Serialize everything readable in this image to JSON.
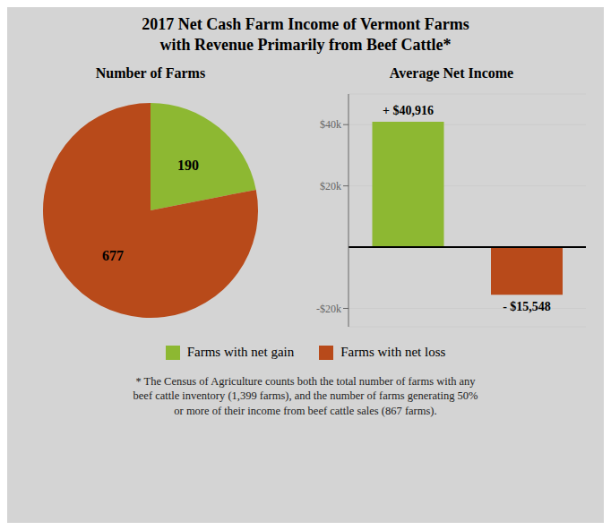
{
  "title": "2017 Net Cash Farm Income of Vermont Farms\nwith Revenue Primarily from Beef Cattle*",
  "annotations": [
    "* The Census of Agriculture counts both the total number of farms with any\nbeef cattle inventory (1,399 farms), and the number of farms generating 50%\nor more of their income from beef cattle sales (867 farms)."
  ],
  "chart_data": [
    {
      "type": "pie",
      "title": "Number of Farms",
      "categories": [
        "Farms with net gain",
        "Farms with net loss"
      ],
      "values": [
        190,
        677
      ],
      "colors": [
        "#8db832",
        "#b84a1a"
      ],
      "data_labels": true,
      "legend": "bottom"
    },
    {
      "type": "bar",
      "title": "Average Net Income",
      "categories": [
        "Farms with net gain",
        "Farms with net loss"
      ],
      "values": [
        40916,
        -15548
      ],
      "value_labels": [
        "+ $40,916",
        "- $15,548"
      ],
      "colors": [
        "#8db832",
        "#b84a1a"
      ],
      "data_labels": true,
      "ylim": [
        -26000,
        50000
      ],
      "yticks": [
        {
          "value": 40000,
          "label": "$40k"
        },
        {
          "value": 20000,
          "label": "$20k"
        },
        {
          "value": -20000,
          "label": "-$20k"
        }
      ],
      "grid": true,
      "tick_labels": "y"
    }
  ]
}
